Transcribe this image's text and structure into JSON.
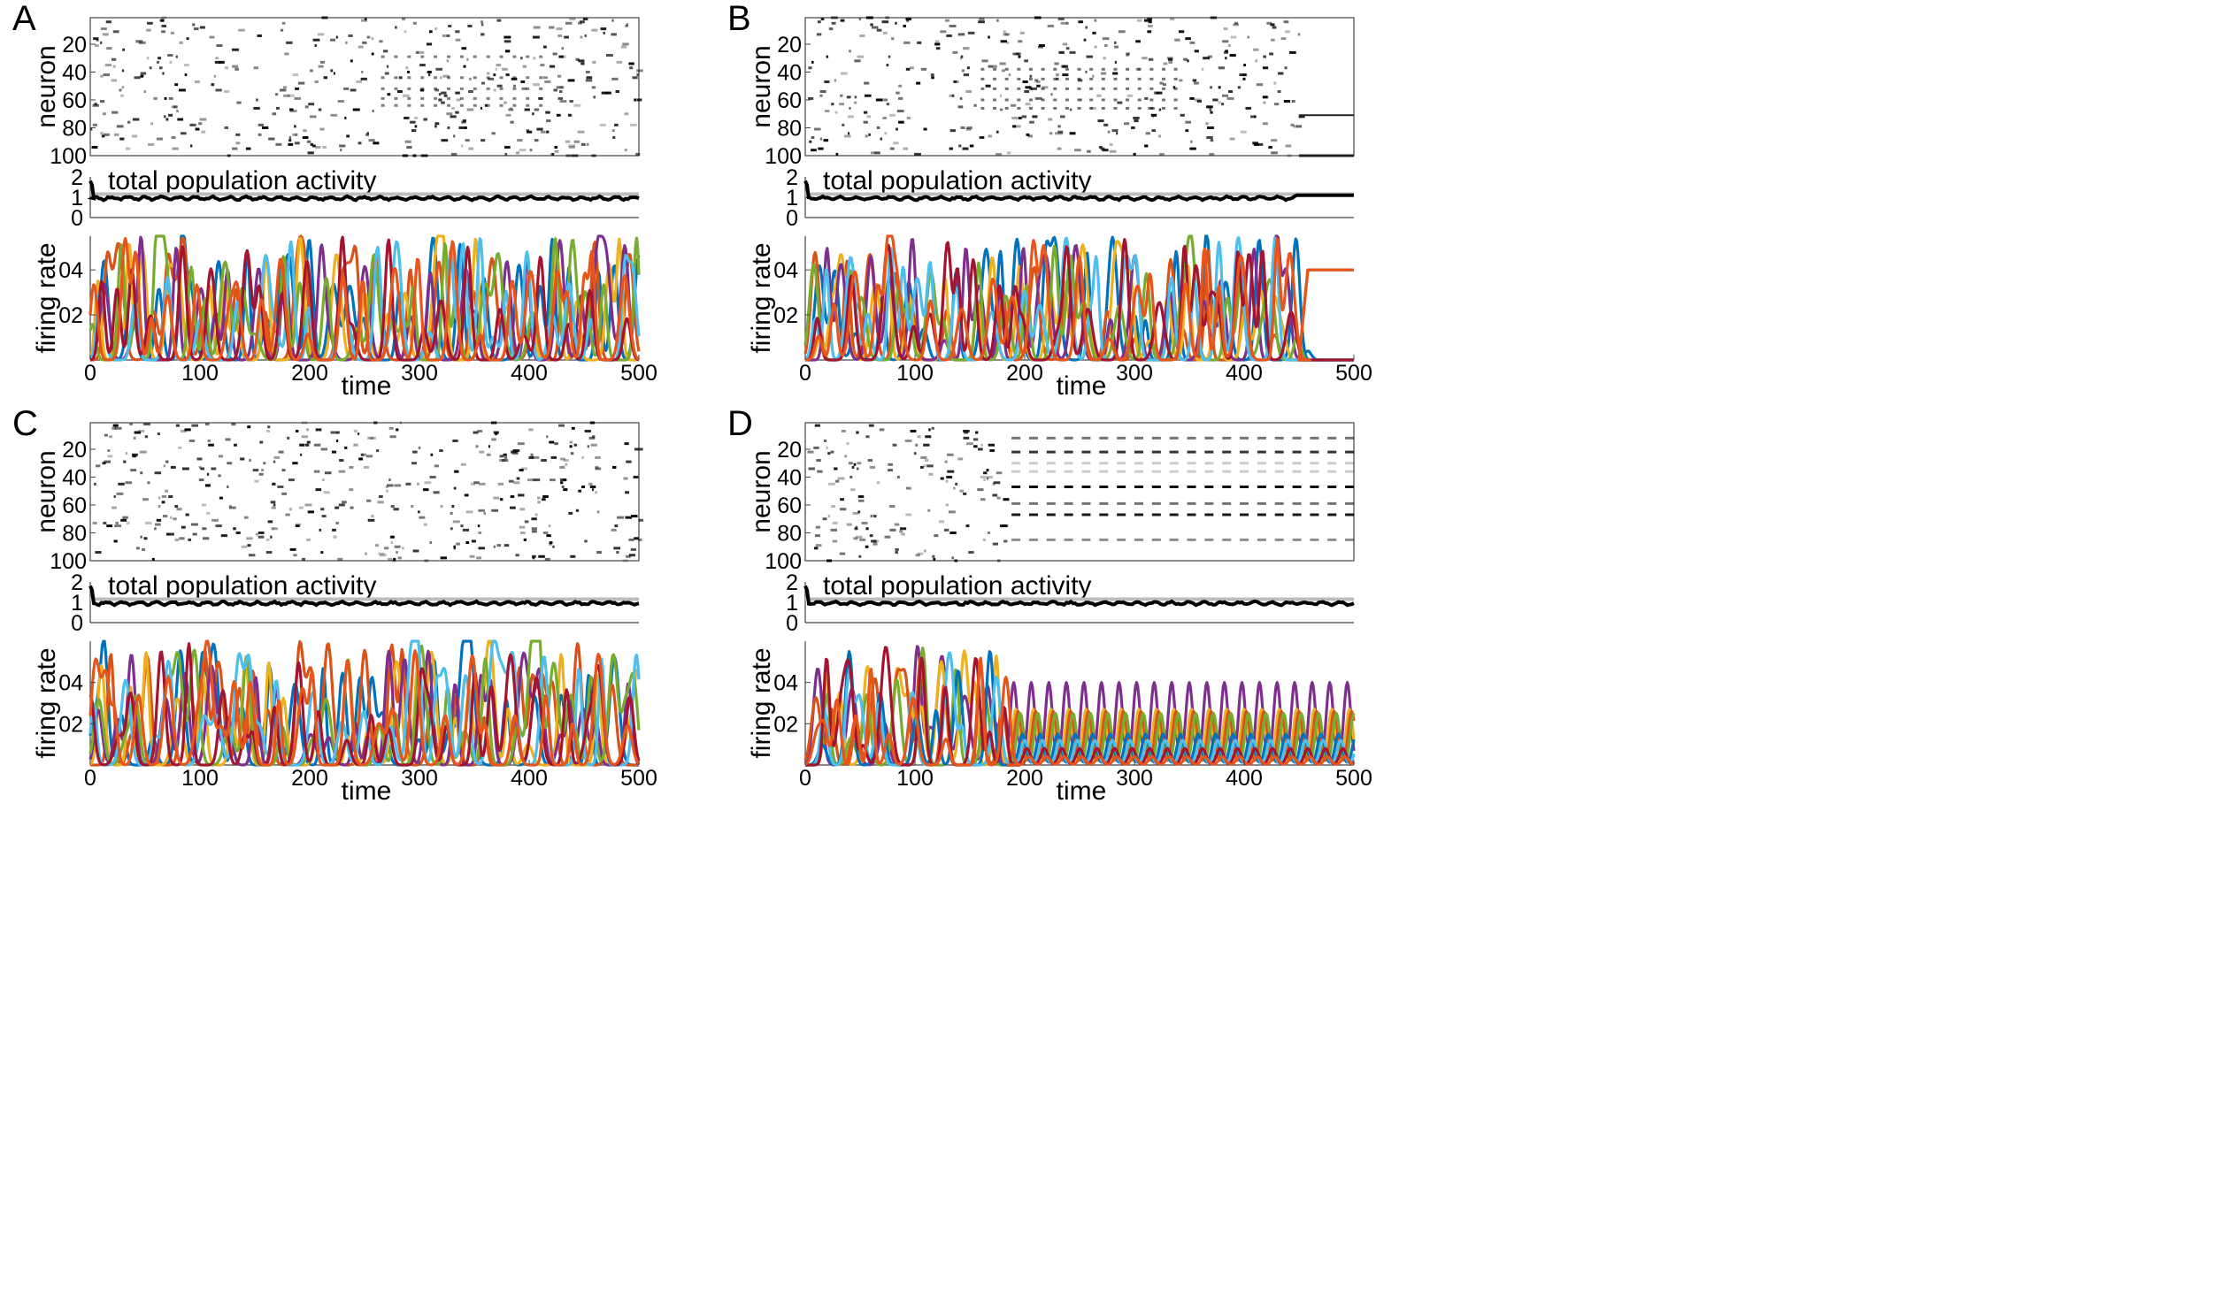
{
  "figure": {
    "panels": [
      {
        "letter": "A",
        "regime": "chaotic"
      },
      {
        "letter": "B",
        "regime": "chaotic_then_fixed"
      },
      {
        "letter": "C",
        "regime": "chaotic"
      },
      {
        "letter": "D",
        "regime": "chaotic_then_limit_cycle"
      }
    ],
    "raster_ylabel": "neuron",
    "raster_yticks": [
      "20",
      "40",
      "60",
      "80",
      "100"
    ],
    "pop_title": "total population activity",
    "pop_yticks": [
      "2",
      "1",
      "0"
    ],
    "rate_ylabel": "firing rate",
    "rate_yticks": [
      "04",
      "02"
    ],
    "xlabel": "time",
    "xticks": [
      "0",
      "100",
      "200",
      "300",
      "400",
      "500"
    ]
  },
  "chart_data": [
    {
      "panel": "A",
      "type": "line",
      "raster": {
        "ylabel": "neuron",
        "ylim": [
          1,
          100
        ],
        "xlim": [
          0,
          500
        ],
        "pattern": "irregular sparse activity throughout"
      },
      "population": {
        "title": "total population activity",
        "ylim": [
          0,
          2
        ],
        "reference_level": 1.15,
        "mean_level": 0.95
      },
      "firing_rate": {
        "ylabel": "firing rate",
        "xlabel": "time",
        "xlim": [
          0,
          500
        ],
        "ylim": [
          0,
          0.55
        ],
        "peak_range": [
          0.2,
          0.55
        ],
        "transition_time": null
      },
      "series_colors": [
        "#0072BD",
        "#D95319",
        "#EDB120",
        "#7E2F8E",
        "#77AC30",
        "#4DBEEE",
        "#A2142F",
        "#E8551B"
      ]
    },
    {
      "panel": "B",
      "type": "line",
      "raster": {
        "ylabel": "neuron",
        "ylim": [
          1,
          100
        ],
        "xlim": [
          0,
          500
        ],
        "pattern": "sequential then frozen",
        "transition_time": 450
      },
      "population": {
        "title": "total population activity",
        "ylim": [
          0,
          2
        ],
        "reference_level": 1.15,
        "mean_level": 0.95,
        "final_level": 1.1
      },
      "firing_rate": {
        "ylabel": "firing rate",
        "xlabel": "time",
        "xlim": [
          0,
          500
        ],
        "ylim": [
          0,
          0.55
        ],
        "transition_time": 450,
        "fixed_point_active": 0.4,
        "fixed_point_silent": 0.0
      },
      "series_colors": [
        "#0072BD",
        "#D95319",
        "#EDB120",
        "#7E2F8E",
        "#77AC30",
        "#4DBEEE",
        "#A2142F",
        "#E8551B"
      ]
    },
    {
      "panel": "C",
      "type": "line",
      "raster": {
        "ylabel": "neuron",
        "ylim": [
          1,
          100
        ],
        "xlim": [
          0,
          500
        ],
        "pattern": "irregular sparse activity throughout"
      },
      "population": {
        "title": "total population activity",
        "ylim": [
          0,
          2
        ],
        "reference_level": 1.15,
        "mean_level": 0.95
      },
      "firing_rate": {
        "ylabel": "firing rate",
        "xlabel": "time",
        "xlim": [
          0,
          500
        ],
        "ylim": [
          0,
          0.6
        ],
        "peak_range": [
          0.2,
          0.6
        ],
        "transition_time": null
      },
      "series_colors": [
        "#0072BD",
        "#D95319",
        "#EDB120",
        "#7E2F8E",
        "#77AC30",
        "#4DBEEE",
        "#A2142F",
        "#E8551B"
      ]
    },
    {
      "panel": "D",
      "type": "line",
      "raster": {
        "ylabel": "neuron",
        "ylim": [
          1,
          100
        ],
        "xlim": [
          0,
          500
        ],
        "pattern": "irregular then periodic",
        "transition_time": 185
      },
      "population": {
        "title": "total population activity",
        "ylim": [
          0,
          2
        ],
        "reference_level": 1.15,
        "mean_level": 0.95
      },
      "firing_rate": {
        "ylabel": "firing rate",
        "xlabel": "time",
        "xlim": [
          0,
          500
        ],
        "ylim": [
          0,
          0.6
        ],
        "transition_time": 185,
        "limit_cycle_period": 16,
        "limit_cycle_peaks": [
          0.4,
          0.27,
          0.26,
          0.25,
          0.15,
          0.12,
          0.08,
          0.04
        ]
      },
      "series_colors": [
        "#7E2F8E",
        "#EDB120",
        "#D95319",
        "#77AC30",
        "#0072BD",
        "#4DBEEE",
        "#A2142F",
        "#E8551B"
      ]
    }
  ]
}
